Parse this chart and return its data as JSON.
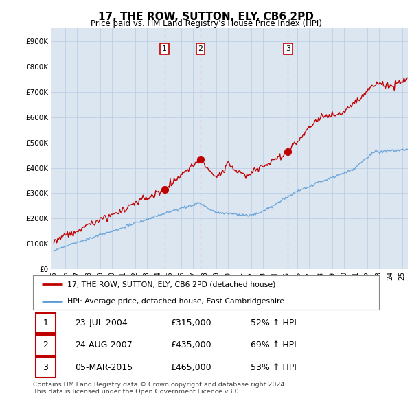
{
  "title": "17, THE ROW, SUTTON, ELY, CB6 2PD",
  "subtitle": "Price paid vs. HM Land Registry's House Price Index (HPI)",
  "legend_line1": "17, THE ROW, SUTTON, ELY, CB6 2PD (detached house)",
  "legend_line2": "HPI: Average price, detached house, East Cambridgeshire",
  "footer1": "Contains HM Land Registry data © Crown copyright and database right 2024.",
  "footer2": "This data is licensed under the Open Government Licence v3.0.",
  "transactions": [
    {
      "num": 1,
      "date": "23-JUL-2004",
      "price": "£315,000",
      "pct": "52% ↑ HPI"
    },
    {
      "num": 2,
      "date": "24-AUG-2007",
      "price": "£435,000",
      "pct": "69% ↑ HPI"
    },
    {
      "num": 3,
      "date": "05-MAR-2015",
      "price": "£465,000",
      "pct": "53% ↑ HPI"
    }
  ],
  "trans_years": [
    2004.54,
    2007.64,
    2015.17
  ],
  "trans_prices": [
    315000,
    435000,
    465000
  ],
  "hpi_color": "#5b9bd5",
  "price_color": "#c00000",
  "vline_color": "#c00000",
  "ylim": [
    0,
    950000
  ],
  "yticks": [
    0,
    100000,
    200000,
    300000,
    400000,
    500000,
    600000,
    700000,
    800000,
    900000
  ],
  "xlim_start": 1994.8,
  "xlim_end": 2025.5,
  "bg_color": "#dce6f1",
  "grid_color": "#b8cce4"
}
